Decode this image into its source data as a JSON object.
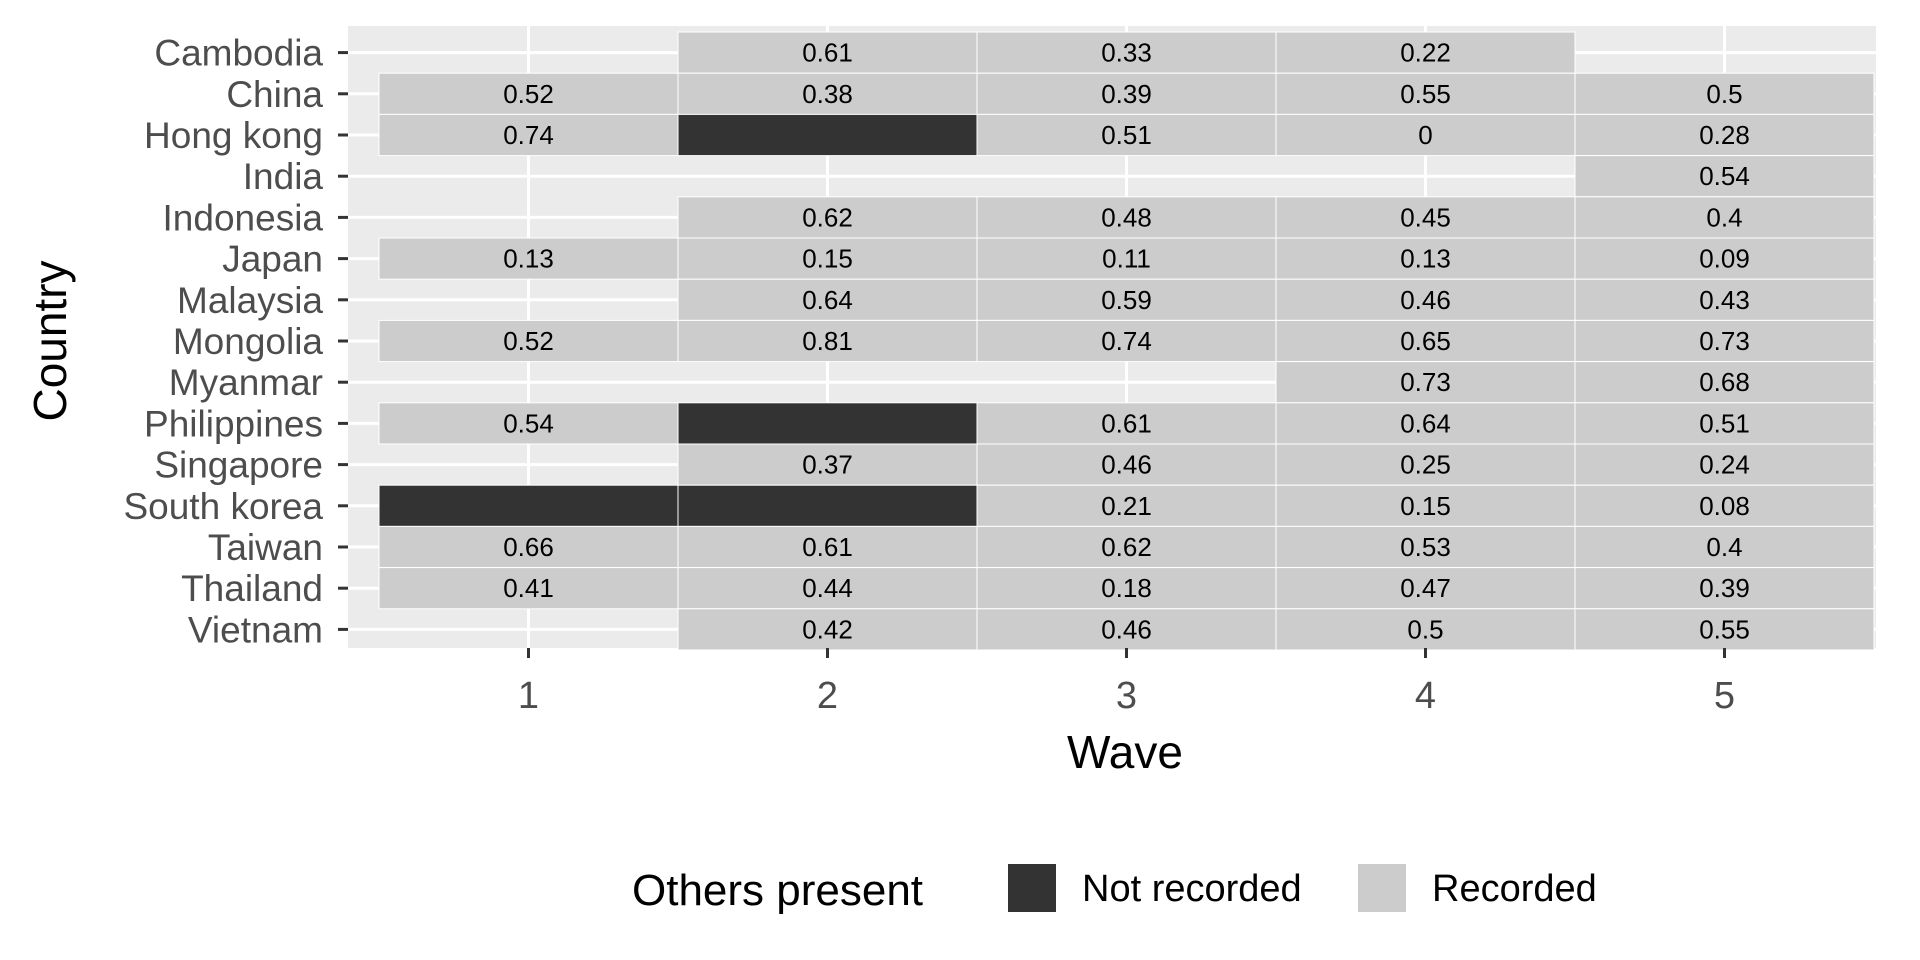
{
  "chart_data": {
    "type": "heatmap",
    "xlabel": "Wave",
    "ylabel": "Country",
    "x": [
      "1",
      "2",
      "3",
      "4",
      "5"
    ],
    "y": [
      "Cambodia",
      "China",
      "Hong kong",
      "India",
      "Indonesia",
      "Japan",
      "Malaysia",
      "Mongolia",
      "Myanmar",
      "Philippines",
      "Singapore",
      "South korea",
      "Taiwan",
      "Thailand",
      "Vietnam"
    ],
    "grid": true,
    "legend": {
      "title": "Others present",
      "position": "bottom",
      "entries": [
        {
          "label": "Not recorded",
          "color": "#333333"
        },
        {
          "label": "Recorded",
          "color": "#cccccc"
        }
      ]
    },
    "colors": {
      "panel": "#ebebeb",
      "grid": "#ffffff",
      "not_recorded": "#333333",
      "recorded": "#cccccc"
    },
    "cells": [
      {
        "country": "Cambodia",
        "wave": 2,
        "status": "Recorded",
        "label": "0.61"
      },
      {
        "country": "Cambodia",
        "wave": 3,
        "status": "Recorded",
        "label": "0.33"
      },
      {
        "country": "Cambodia",
        "wave": 4,
        "status": "Recorded",
        "label": "0.22"
      },
      {
        "country": "China",
        "wave": 1,
        "status": "Recorded",
        "label": "0.52"
      },
      {
        "country": "China",
        "wave": 2,
        "status": "Recorded",
        "label": "0.38"
      },
      {
        "country": "China",
        "wave": 3,
        "status": "Recorded",
        "label": "0.39"
      },
      {
        "country": "China",
        "wave": 4,
        "status": "Recorded",
        "label": "0.55"
      },
      {
        "country": "China",
        "wave": 5,
        "status": "Recorded",
        "label": "0.5"
      },
      {
        "country": "Hong kong",
        "wave": 1,
        "status": "Recorded",
        "label": "0.74"
      },
      {
        "country": "Hong kong",
        "wave": 2,
        "status": "Not recorded",
        "label": ""
      },
      {
        "country": "Hong kong",
        "wave": 3,
        "status": "Recorded",
        "label": "0.51"
      },
      {
        "country": "Hong kong",
        "wave": 4,
        "status": "Recorded",
        "label": "0"
      },
      {
        "country": "Hong kong",
        "wave": 5,
        "status": "Recorded",
        "label": "0.28"
      },
      {
        "country": "India",
        "wave": 5,
        "status": "Recorded",
        "label": "0.54"
      },
      {
        "country": "Indonesia",
        "wave": 2,
        "status": "Recorded",
        "label": "0.62"
      },
      {
        "country": "Indonesia",
        "wave": 3,
        "status": "Recorded",
        "label": "0.48"
      },
      {
        "country": "Indonesia",
        "wave": 4,
        "status": "Recorded",
        "label": "0.45"
      },
      {
        "country": "Indonesia",
        "wave": 5,
        "status": "Recorded",
        "label": "0.4"
      },
      {
        "country": "Japan",
        "wave": 1,
        "status": "Recorded",
        "label": "0.13"
      },
      {
        "country": "Japan",
        "wave": 2,
        "status": "Recorded",
        "label": "0.15"
      },
      {
        "country": "Japan",
        "wave": 3,
        "status": "Recorded",
        "label": "0.11"
      },
      {
        "country": "Japan",
        "wave": 4,
        "status": "Recorded",
        "label": "0.13"
      },
      {
        "country": "Japan",
        "wave": 5,
        "status": "Recorded",
        "label": "0.09"
      },
      {
        "country": "Malaysia",
        "wave": 2,
        "status": "Recorded",
        "label": "0.64"
      },
      {
        "country": "Malaysia",
        "wave": 3,
        "status": "Recorded",
        "label": "0.59"
      },
      {
        "country": "Malaysia",
        "wave": 4,
        "status": "Recorded",
        "label": "0.46"
      },
      {
        "country": "Malaysia",
        "wave": 5,
        "status": "Recorded",
        "label": "0.43"
      },
      {
        "country": "Mongolia",
        "wave": 1,
        "status": "Recorded",
        "label": "0.52"
      },
      {
        "country": "Mongolia",
        "wave": 2,
        "status": "Recorded",
        "label": "0.81"
      },
      {
        "country": "Mongolia",
        "wave": 3,
        "status": "Recorded",
        "label": "0.74"
      },
      {
        "country": "Mongolia",
        "wave": 4,
        "status": "Recorded",
        "label": "0.65"
      },
      {
        "country": "Mongolia",
        "wave": 5,
        "status": "Recorded",
        "label": "0.73"
      },
      {
        "country": "Myanmar",
        "wave": 4,
        "status": "Recorded",
        "label": "0.73"
      },
      {
        "country": "Myanmar",
        "wave": 5,
        "status": "Recorded",
        "label": "0.68"
      },
      {
        "country": "Philippines",
        "wave": 1,
        "status": "Recorded",
        "label": "0.54"
      },
      {
        "country": "Philippines",
        "wave": 2,
        "status": "Not recorded",
        "label": ""
      },
      {
        "country": "Philippines",
        "wave": 3,
        "status": "Recorded",
        "label": "0.61"
      },
      {
        "country": "Philippines",
        "wave": 4,
        "status": "Recorded",
        "label": "0.64"
      },
      {
        "country": "Philippines",
        "wave": 5,
        "status": "Recorded",
        "label": "0.51"
      },
      {
        "country": "Singapore",
        "wave": 2,
        "status": "Recorded",
        "label": "0.37"
      },
      {
        "country": "Singapore",
        "wave": 3,
        "status": "Recorded",
        "label": "0.46"
      },
      {
        "country": "Singapore",
        "wave": 4,
        "status": "Recorded",
        "label": "0.25"
      },
      {
        "country": "Singapore",
        "wave": 5,
        "status": "Recorded",
        "label": "0.24"
      },
      {
        "country": "South korea",
        "wave": 1,
        "status": "Not recorded",
        "label": ""
      },
      {
        "country": "South korea",
        "wave": 2,
        "status": "Not recorded",
        "label": ""
      },
      {
        "country": "South korea",
        "wave": 3,
        "status": "Recorded",
        "label": "0.21"
      },
      {
        "country": "South korea",
        "wave": 4,
        "status": "Recorded",
        "label": "0.15"
      },
      {
        "country": "South korea",
        "wave": 5,
        "status": "Recorded",
        "label": "0.08"
      },
      {
        "country": "Taiwan",
        "wave": 1,
        "status": "Recorded",
        "label": "0.66"
      },
      {
        "country": "Taiwan",
        "wave": 2,
        "status": "Recorded",
        "label": "0.61"
      },
      {
        "country": "Taiwan",
        "wave": 3,
        "status": "Recorded",
        "label": "0.62"
      },
      {
        "country": "Taiwan",
        "wave": 4,
        "status": "Recorded",
        "label": "0.53"
      },
      {
        "country": "Taiwan",
        "wave": 5,
        "status": "Recorded",
        "label": "0.4"
      },
      {
        "country": "Thailand",
        "wave": 1,
        "status": "Recorded",
        "label": "0.41"
      },
      {
        "country": "Thailand",
        "wave": 2,
        "status": "Recorded",
        "label": "0.44"
      },
      {
        "country": "Thailand",
        "wave": 3,
        "status": "Recorded",
        "label": "0.18"
      },
      {
        "country": "Thailand",
        "wave": 4,
        "status": "Recorded",
        "label": "0.47"
      },
      {
        "country": "Thailand",
        "wave": 5,
        "status": "Recorded",
        "label": "0.39"
      },
      {
        "country": "Vietnam",
        "wave": 2,
        "status": "Recorded",
        "label": "0.42"
      },
      {
        "country": "Vietnam",
        "wave": 3,
        "status": "Recorded",
        "label": "0.46"
      },
      {
        "country": "Vietnam",
        "wave": 4,
        "status": "Recorded",
        "label": "0.5"
      },
      {
        "country": "Vietnam",
        "wave": 5,
        "status": "Recorded",
        "label": "0.55"
      }
    ]
  }
}
